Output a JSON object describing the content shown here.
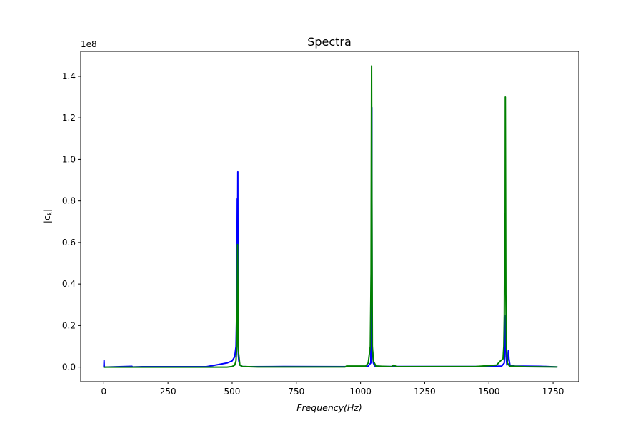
{
  "chart_data": {
    "type": "line",
    "title": "Spectra",
    "xlabel_main": "Frequency",
    "xlabel_unit": "(Hz)",
    "ylabel_prefix": "|c",
    "ylabel_sub": "k",
    "ylabel_suffix": "|",
    "y_offset_text": "1e8",
    "xlim": [
      -90,
      1850
    ],
    "ylim": [
      -0.07,
      1.52
    ],
    "x_ticks": [
      0,
      250,
      500,
      750,
      1000,
      1250,
      1500,
      1750
    ],
    "x_tick_labels": [
      "0",
      "250",
      "500",
      "750",
      "1000",
      "1250",
      "1500",
      "1750"
    ],
    "y_ticks": [
      0.0,
      0.2,
      0.4,
      0.6,
      0.8,
      1.0,
      1.2,
      1.4
    ],
    "y_tick_labels": [
      "0.0",
      "0.2",
      "0.4",
      "0.6",
      "0.8",
      "1.0",
      "1.2",
      "1.4"
    ],
    "grid": false,
    "series": [
      {
        "color": "#0000ff",
        "x": [
          0,
          1,
          2,
          60,
          110,
          112,
          150,
          250,
          400,
          480,
          500,
          510,
          515,
          518,
          520,
          521,
          522,
          523,
          524,
          526,
          530,
          540,
          560,
          700,
          1000,
          1030,
          1040,
          1043,
          1044,
          1045,
          1047,
          1050,
          1055,
          1100,
          1500,
          1550,
          1560,
          1564,
          1565,
          1567,
          1570,
          1574,
          1576,
          1578,
          1582,
          1600,
          1700,
          1765
        ],
        "y": [
          0.0,
          0.032,
          0.0,
          0.002,
          0.004,
          0.001,
          0.002,
          0.002,
          0.002,
          0.02,
          0.03,
          0.05,
          0.1,
          0.3,
          0.81,
          0.6,
          0.94,
          0.15,
          0.06,
          0.03,
          0.01,
          0.003,
          0.002,
          0.003,
          0.002,
          0.005,
          0.02,
          0.95,
          1.25,
          0.06,
          0.08,
          0.02,
          0.005,
          0.003,
          0.003,
          0.005,
          0.02,
          0.2,
          0.25,
          0.05,
          0.01,
          0.04,
          0.08,
          0.04,
          0.01,
          0.005,
          0.004,
          0.001
        ]
      },
      {
        "color": "#008000",
        "x": [
          0,
          300,
          480,
          500,
          510,
          515,
          518,
          520,
          521,
          522,
          524,
          530,
          540,
          600,
          940,
          945,
          1020,
          1030,
          1038,
          1041,
          1042,
          1043,
          1044,
          1046,
          1050,
          1060,
          1120,
          1130,
          1140,
          1450,
          1530,
          1545,
          1555,
          1558,
          1560,
          1561,
          1562,
          1563,
          1564,
          1565,
          1566,
          1568,
          1572,
          1580,
          1640,
          1765
        ],
        "y": [
          0.0,
          0.0,
          0.0,
          0.003,
          0.01,
          0.03,
          0.1,
          0.3,
          0.59,
          0.42,
          0.08,
          0.01,
          0.003,
          0.001,
          0.001,
          0.005,
          0.005,
          0.02,
          0.1,
          0.45,
          1.0,
          1.45,
          0.9,
          0.1,
          0.03,
          0.005,
          0.002,
          0.01,
          0.002,
          0.003,
          0.01,
          0.03,
          0.04,
          0.1,
          0.25,
          0.55,
          0.74,
          0.38,
          1.3,
          0.85,
          0.35,
          0.1,
          0.02,
          0.005,
          0.002,
          0.001
        ]
      }
    ]
  }
}
